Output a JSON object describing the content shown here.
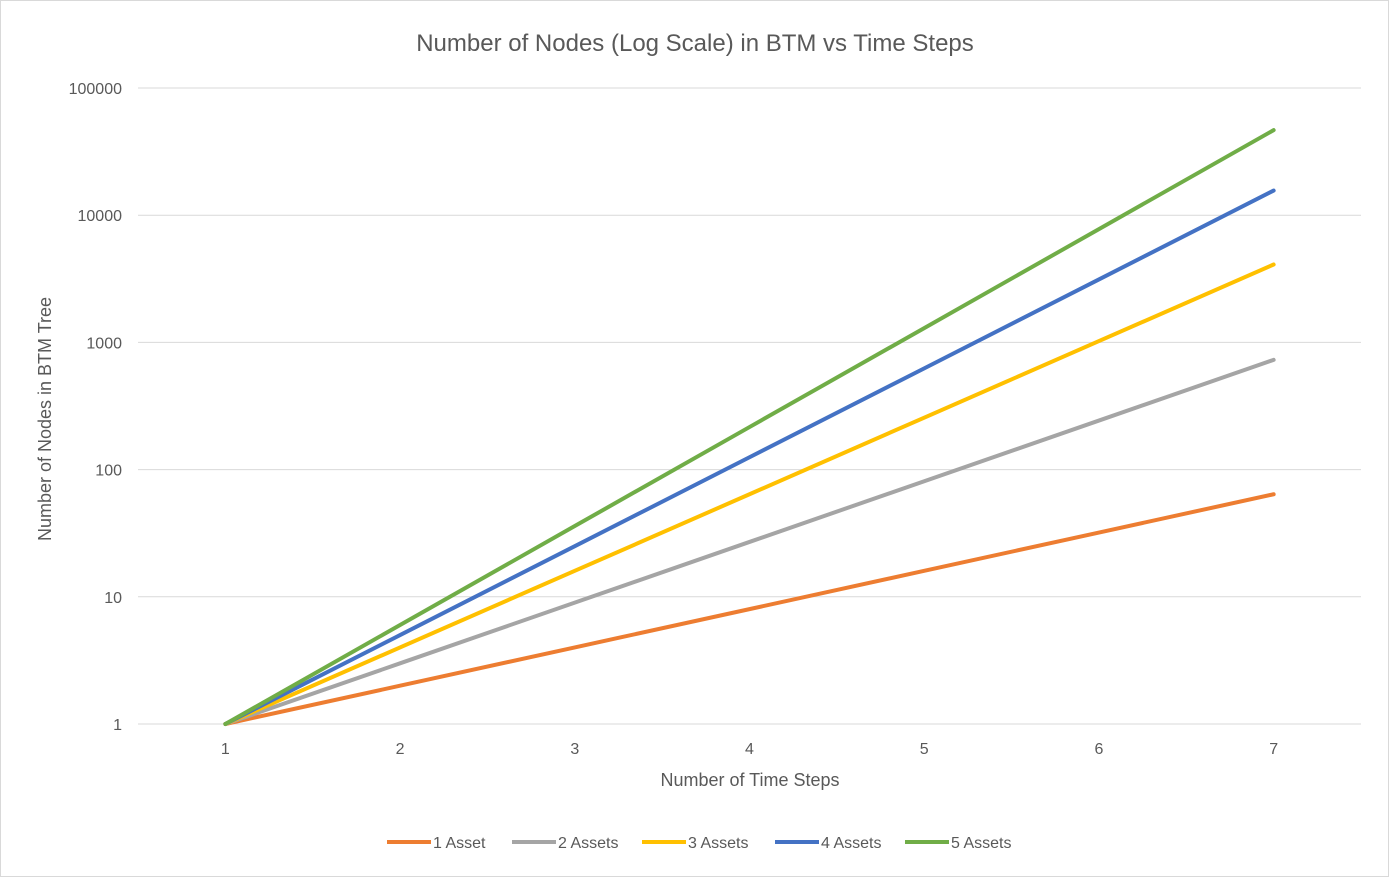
{
  "chart_data": {
    "type": "line",
    "title": "Number of Nodes (Log Scale) in BTM vs Time Steps",
    "xlabel": "Number of Time Steps",
    "ylabel": "Number of Nodes in BTM Tree",
    "x": [
      1,
      2,
      3,
      4,
      5,
      6,
      7
    ],
    "y_scale": "log",
    "ylim": [
      1,
      100000
    ],
    "y_ticks": [
      "1",
      "10",
      "100",
      "1000",
      "10000",
      "100000"
    ],
    "x_ticks": [
      "1",
      "2",
      "3",
      "4",
      "5",
      "6",
      "7"
    ],
    "grid": "horizontal",
    "legend_position": "bottom",
    "series": [
      {
        "name": "1 Asset",
        "color": "#ED7D31",
        "values": [
          1,
          2,
          4,
          8,
          16,
          32,
          64
        ]
      },
      {
        "name": "2 Assets",
        "color": "#A5A5A5",
        "values": [
          1,
          3,
          9,
          27,
          81,
          243,
          729
        ]
      },
      {
        "name": "3 Assets",
        "color": "#FFC000",
        "values": [
          1,
          4,
          16,
          64,
          256,
          1024,
          4096
        ]
      },
      {
        "name": "4 Assets",
        "color": "#4472C4",
        "values": [
          1,
          5,
          25,
          125,
          625,
          3125,
          15625
        ]
      },
      {
        "name": "5 Assets",
        "color": "#70AD47",
        "values": [
          1,
          6,
          36,
          216,
          1296,
          7776,
          46656
        ]
      }
    ]
  }
}
